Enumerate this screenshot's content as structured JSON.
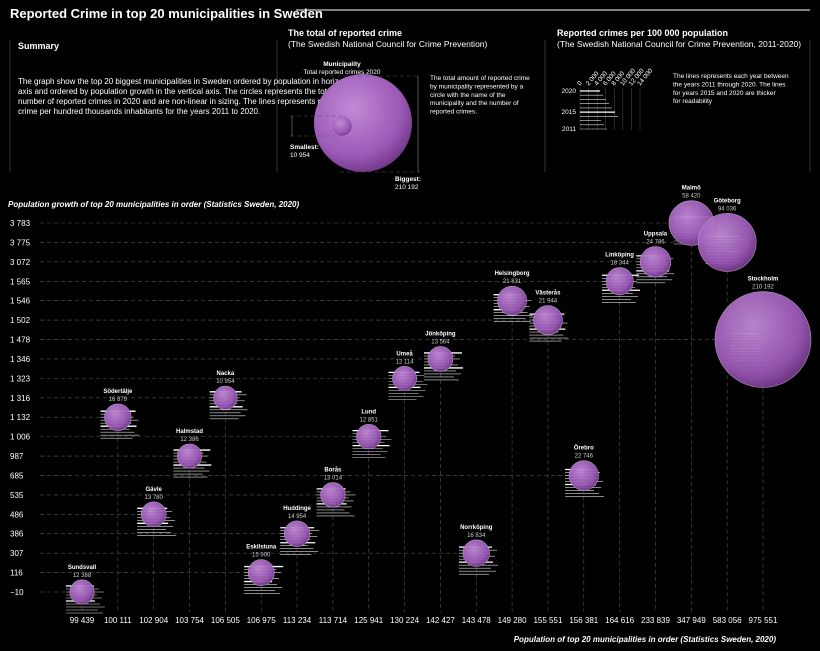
{
  "page": {
    "title": "Reported Crime in top 20 municipalities in Sweden"
  },
  "summary": {
    "heading": "Summary",
    "text": "The graph show the top 20 biggest municipalities in Sweden ordered by population in horizontal axis and ordered by population growth in the vertical axis. The circles represents the total number of reported crimes in 2020 and are non-linear in sizing. The lines represents reported crime per hundred thousands inhabitants for the years 2011 to 2020."
  },
  "legend_total": {
    "heading": "The total of reported crime",
    "source": "(The Swedish National Council for Crime Prevention)",
    "municipality_label": "Municipality",
    "municipality_sub": "Total reported crimes 2020",
    "smallest_label": "Smallest:",
    "smallest_value": "10 954",
    "biggest_label": "Biggest:",
    "biggest_value": "210 192",
    "description": "The total amount of reported crime by municipality represented by a circle with the name of the municipality and the number of reported crimes."
  },
  "legend_rate": {
    "heading": "Reported crimes per 100 000 population",
    "source": "(The Swedish National Council for Crime Prevention, 2011-2020)",
    "description": "The lines represents each year between the years 2011 through 2020. The lines for years 2015 and 2020 are thicker for readability",
    "years": [
      "2020",
      "2015",
      "2011"
    ],
    "scale_ticks": [
      "0",
      "2 000",
      "4 000",
      "6 000",
      "8 000",
      "10 000",
      "12 000",
      "14 000"
    ]
  },
  "colors": {
    "bubble": "#9b59b6",
    "bubble_edge": "#c39bd3",
    "background": "#000000"
  },
  "chart_data": {
    "type": "scatter",
    "title": "Reported Crime in top 20 municipalities in Sweden",
    "ylabel": "Population growth of top 20 municipalities in order (Statistics Sweden, 2020)",
    "xlabel": "Population of top 20 municipalities in order (Statistics Sweden, 2020)",
    "x_ticks": [
      "99 439",
      "100 111",
      "102 904",
      "103 754",
      "106 505",
      "106 975",
      "113 234",
      "113 714",
      "125 941",
      "130 224",
      "142 427",
      "143 478",
      "149 280",
      "155 551",
      "156 381",
      "164 616",
      "233 839",
      "347 949",
      "583 056",
      "975 551"
    ],
    "y_ticks": [
      "−10",
      "116",
      "307",
      "386",
      "486",
      "535",
      "685",
      "987",
      "1 006",
      "1 132",
      "1 316",
      "1 323",
      "1 346",
      "1 478",
      "1 502",
      "1 546",
      "1 565",
      "3 072",
      "3 775",
      "3 783"
    ],
    "points": [
      {
        "name": "Sundsvall",
        "crimes": "12 388",
        "population": 99439,
        "growth": -10,
        "x_rank": 0,
        "y_rank": 0,
        "crimes_value": 12388
      },
      {
        "name": "Södertälje",
        "crimes": "16 879",
        "population": 100111,
        "growth": 1132,
        "x_rank": 1,
        "y_rank": 9,
        "crimes_value": 16879
      },
      {
        "name": "Gävle",
        "crimes": "13 780",
        "population": 102904,
        "growth": 486,
        "x_rank": 2,
        "y_rank": 4,
        "crimes_value": 13780
      },
      {
        "name": "Halmstad",
        "crimes": "12 386",
        "population": 103754,
        "growth": 987,
        "x_rank": 3,
        "y_rank": 7,
        "crimes_value": 12386
      },
      {
        "name": "Nacka",
        "crimes": "10 954",
        "population": 106505,
        "growth": 1316,
        "x_rank": 4,
        "y_rank": 10,
        "crimes_value": 10954
      },
      {
        "name": "Eskilstuna",
        "crimes": "15 900",
        "population": 106975,
        "growth": 116,
        "x_rank": 5,
        "y_rank": 1,
        "crimes_value": 15900
      },
      {
        "name": "Huddinge",
        "crimes": "14 954",
        "population": 113234,
        "growth": 386,
        "x_rank": 6,
        "y_rank": 3,
        "crimes_value": 14954
      },
      {
        "name": "Borås",
        "crimes": "13 014",
        "population": 113714,
        "growth": 535,
        "x_rank": 7,
        "y_rank": 5,
        "crimes_value": 13014
      },
      {
        "name": "Lund",
        "crimes": "12 851",
        "population": 125941,
        "growth": 1006,
        "x_rank": 8,
        "y_rank": 8,
        "crimes_value": 12851
      },
      {
        "name": "Umeå",
        "crimes": "12 114",
        "population": 130224,
        "growth": 1323,
        "x_rank": 9,
        "y_rank": 11,
        "crimes_value": 12114
      },
      {
        "name": "Jönköping",
        "crimes": "13 564",
        "population": 142427,
        "growth": 1346,
        "x_rank": 10,
        "y_rank": 12,
        "crimes_value": 13564
      },
      {
        "name": "Norrköping",
        "crimes": "16 834",
        "population": 143478,
        "growth": 307,
        "x_rank": 11,
        "y_rank": 2,
        "crimes_value": 16834
      },
      {
        "name": "Helsingborg",
        "crimes": "21 831",
        "population": 149280,
        "growth": 1546,
        "x_rank": 12,
        "y_rank": 15,
        "crimes_value": 21831
      },
      {
        "name": "Västerås",
        "crimes": "21 944",
        "population": 155551,
        "growth": 1502,
        "x_rank": 13,
        "y_rank": 14,
        "crimes_value": 21944
      },
      {
        "name": "Örebro",
        "crimes": "22 746",
        "population": 156381,
        "growth": 685,
        "x_rank": 14,
        "y_rank": 6,
        "crimes_value": 22746
      },
      {
        "name": "Linköping",
        "crimes": "18 344",
        "population": 164616,
        "growth": 1565,
        "x_rank": 15,
        "y_rank": 16,
        "crimes_value": 18344
      },
      {
        "name": "Uppsala",
        "crimes": "24 786",
        "population": 233839,
        "growth": 3072,
        "x_rank": 16,
        "y_rank": 17,
        "crimes_value": 24786
      },
      {
        "name": "Malmö",
        "crimes": "58 420",
        "population": 347949,
        "growth": 3783,
        "x_rank": 17,
        "y_rank": 19,
        "crimes_value": 58420
      },
      {
        "name": "Göteborg",
        "crimes": "94 036",
        "population": 583056,
        "growth": 3775,
        "x_rank": 18,
        "y_rank": 18,
        "crimes_value": 94036
      },
      {
        "name": "Stockholm",
        "crimes": "210 192",
        "population": 975551,
        "growth": 1478,
        "x_rank": 19,
        "y_rank": 13,
        "crimes_value": 210192
      }
    ]
  }
}
